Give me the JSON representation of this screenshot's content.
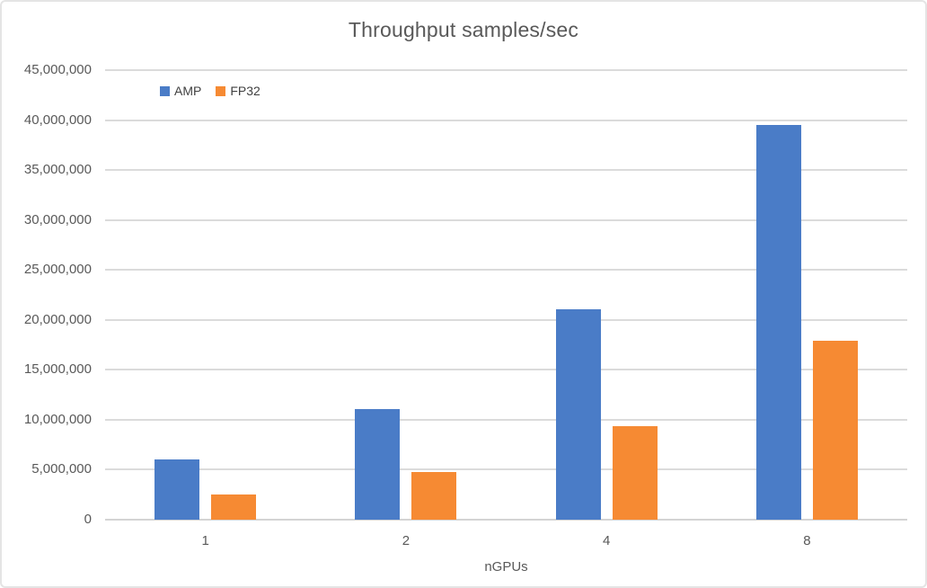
{
  "chart_data": {
    "type": "bar",
    "title": "Throughput samples/sec",
    "xlabel": "nGPUs",
    "ylabel": "",
    "categories": [
      "1",
      "2",
      "4",
      "8"
    ],
    "series": [
      {
        "name": "AMP",
        "color": "#4A7CC7",
        "values": [
          6000000,
          11100000,
          21100000,
          39500000
        ]
      },
      {
        "name": "FP32",
        "color": "#F68A33",
        "values": [
          2500000,
          4800000,
          9400000,
          17900000
        ]
      }
    ],
    "ylim": [
      0,
      45000000
    ],
    "ytick_step": 5000000,
    "ytick_labels": [
      "0",
      "5,000,000",
      "10,000,000",
      "15,000,000",
      "20,000,000",
      "25,000,000",
      "30,000,000",
      "35,000,000",
      "40,000,000",
      "45,000,000"
    ],
    "grid": true,
    "legend_position": "top-left"
  },
  "colors": {
    "title_text": "#595959",
    "axis_text": "#595959",
    "legend_text": "#404040",
    "gridline": "#DBDBDB",
    "zero_axis_line": "#D4D4D4",
    "card_border": "#E4E4E4",
    "background": "#FFFFFF",
    "series_amp": "#4A7CC7",
    "series_fp32": "#F68A33"
  }
}
